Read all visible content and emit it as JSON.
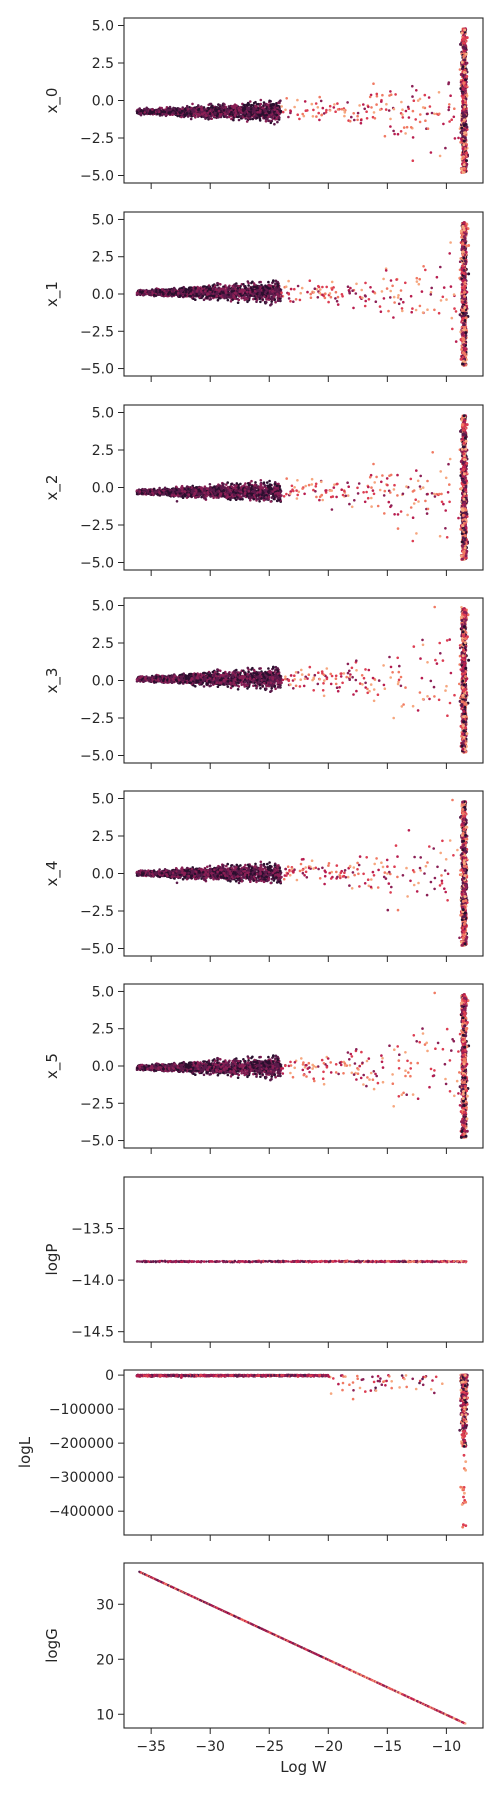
{
  "chart_data": {
    "type": "scatter",
    "shared_x": {
      "label": "Log W",
      "ticks": [
        -35,
        -30,
        -25,
        -20,
        -15,
        -10
      ],
      "tick_labels": [
        "−35",
        "−30",
        "−25",
        "−20",
        "−15",
        "−10"
      ],
      "range": [
        -37.3,
        -6.9
      ],
      "data_range": [
        -36.2,
        -8.3
      ]
    },
    "colormap": [
      "#2b0f2e",
      "#5a1a4a",
      "#8a1f55",
      "#b81d4f",
      "#dc3d52",
      "#f07a63",
      "#f6a77f"
    ],
    "panels": [
      {
        "ylabel": "x_0",
        "ylim": [
          -5.5,
          5.5
        ],
        "yticks": [
          5.0,
          2.5,
          0.0,
          -2.5,
          -5.0
        ],
        "ytick_labels": [
          "5.0",
          "2.5",
          "0.0",
          "−2.5",
          "−5.0"
        ],
        "center": -0.75,
        "drift": 0.0
      },
      {
        "ylabel": "x_1",
        "ylim": [
          -5.5,
          5.5
        ],
        "yticks": [
          5.0,
          2.5,
          0.0,
          -2.5,
          -5.0
        ],
        "ytick_labels": [
          "5.0",
          "2.5",
          "0.0",
          "−2.5",
          "−5.0"
        ],
        "center": 0.1,
        "drift": 0.0
      },
      {
        "ylabel": "x_2",
        "ylim": [
          -5.5,
          5.5
        ],
        "yticks": [
          5.0,
          2.5,
          0.0,
          -2.5,
          -5.0
        ],
        "ytick_labels": [
          "5.0",
          "2.5",
          "0.0",
          "−2.5",
          "−5.0"
        ],
        "center": -0.3,
        "drift": 0.0
      },
      {
        "ylabel": "x_3",
        "ylim": [
          -5.5,
          5.5
        ],
        "yticks": [
          5.0,
          2.5,
          0.0,
          -2.5,
          -5.0
        ],
        "ytick_labels": [
          "5.0",
          "2.5",
          "0.0",
          "−2.5",
          "−5.0"
        ],
        "center": 0.1,
        "drift": 0.0
      },
      {
        "ylabel": "x_4",
        "ylim": [
          -5.5,
          5.5
        ],
        "yticks": [
          5.0,
          2.5,
          0.0,
          -2.5,
          -5.0
        ],
        "ytick_labels": [
          "5.0",
          "2.5",
          "0.0",
          "−2.5",
          "−5.0"
        ],
        "center": 0.0,
        "drift": 0.0
      },
      {
        "ylabel": "x_5",
        "ylim": [
          -5.5,
          5.5
        ],
        "yticks": [
          5.0,
          2.5,
          0.0,
          -2.5,
          -5.0
        ],
        "ytick_labels": [
          "5.0",
          "2.5",
          "0.0",
          "−2.5",
          "−5.0"
        ],
        "center": -0.1,
        "drift": 0.0
      },
      {
        "ylabel": "logP",
        "ylim": [
          -14.6,
          -13.0
        ],
        "yticks": [
          -13.5,
          -14.0,
          -14.5
        ],
        "ytick_labels": [
          "−13.5",
          "−14.0",
          "−14.5"
        ],
        "center": -13.82,
        "drift": 0.0
      },
      {
        "ylabel": "logL",
        "ylim": [
          -470000,
          15000
        ],
        "yticks": [
          0,
          -100000,
          -200000,
          -300000,
          -400000
        ],
        "ytick_labels": [
          "0",
          "−100000",
          "−200000",
          "−300000",
          "−400000"
        ],
        "center": 0,
        "drift": 0.0
      },
      {
        "ylabel": "logG",
        "ylim": [
          7.5,
          37.5
        ],
        "yticks": [
          30,
          20,
          10
        ],
        "ytick_labels": [
          "30",
          "20",
          "10"
        ],
        "line_start": [
          -36.0,
          35.9
        ],
        "line_end": [
          -8.4,
          8.3
        ]
      }
    ]
  }
}
